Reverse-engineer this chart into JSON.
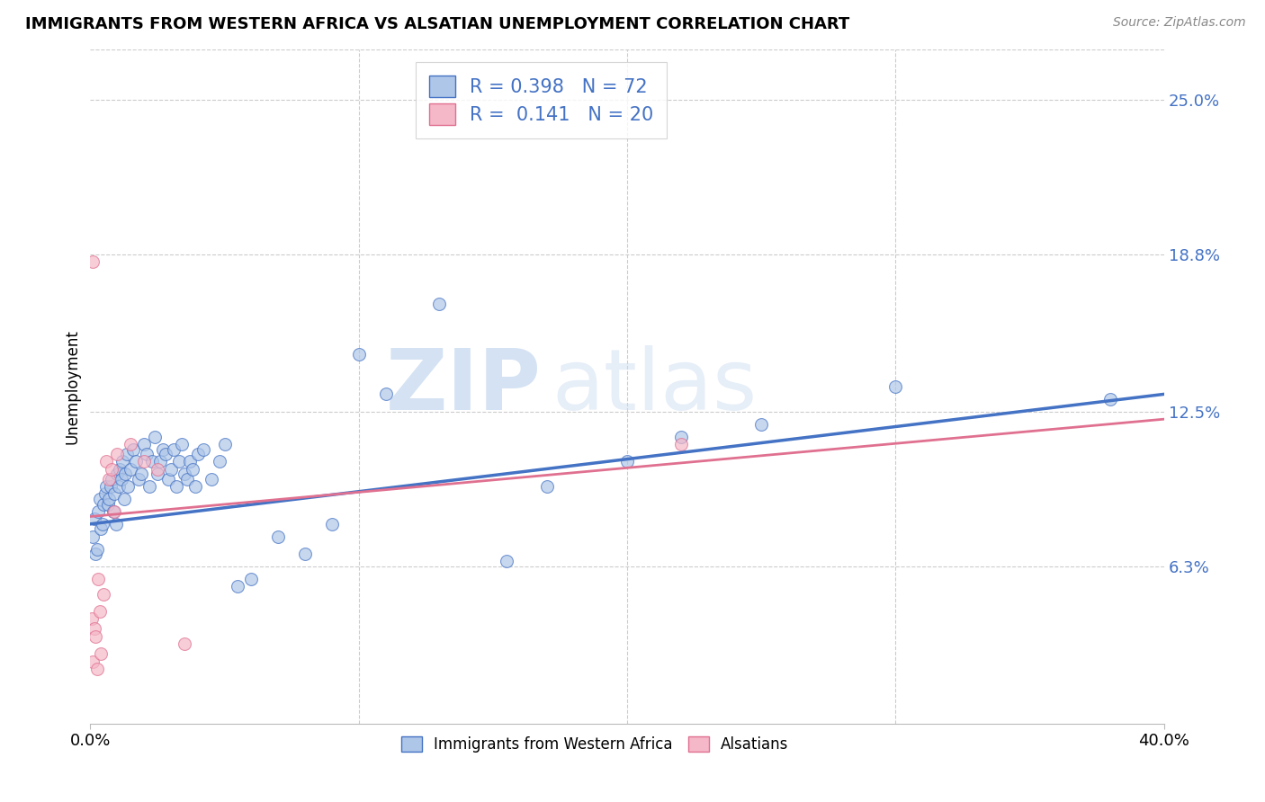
{
  "title": "IMMIGRANTS FROM WESTERN AFRICA VS ALSATIAN UNEMPLOYMENT CORRELATION CHART",
  "source": "Source: ZipAtlas.com",
  "ylabel": "Unemployment",
  "ytick_values": [
    6.3,
    12.5,
    18.8,
    25.0
  ],
  "xmin": 0.0,
  "xmax": 40.0,
  "ymin": 0.0,
  "ymax": 27.0,
  "r_blue": 0.398,
  "n_blue": 72,
  "r_pink": 0.141,
  "n_pink": 20,
  "blue_color": "#aec6e8",
  "pink_color": "#f5b8c8",
  "line_blue": "#4472C4",
  "line_pink": "#E07090",
  "watermark_zip": "ZIP",
  "watermark_atlas": "atlas",
  "legend_label_blue": "Immigrants from Western Africa",
  "legend_label_pink": "Alsatians",
  "blue_line_start_y": 8.0,
  "blue_line_end_y": 13.2,
  "pink_line_start_y": 8.3,
  "pink_line_end_y": 12.2,
  "blue_scatter_x": [
    0.1,
    0.15,
    0.2,
    0.25,
    0.3,
    0.35,
    0.4,
    0.45,
    0.5,
    0.55,
    0.6,
    0.65,
    0.7,
    0.75,
    0.8,
    0.85,
    0.9,
    0.95,
    1.0,
    1.05,
    1.1,
    1.15,
    1.2,
    1.25,
    1.3,
    1.35,
    1.4,
    1.5,
    1.6,
    1.7,
    1.8,
    1.9,
    2.0,
    2.1,
    2.2,
    2.3,
    2.4,
    2.5,
    2.6,
    2.7,
    2.8,
    2.9,
    3.0,
    3.1,
    3.2,
    3.3,
    3.4,
    3.5,
    3.6,
    3.7,
    3.8,
    3.9,
    4.0,
    4.2,
    4.5,
    4.8,
    5.0,
    5.5,
    6.0,
    7.0,
    8.0,
    9.0,
    10.0,
    11.0,
    13.0,
    15.5,
    17.0,
    20.0,
    22.0,
    25.0,
    30.0,
    38.0
  ],
  "blue_scatter_y": [
    7.5,
    8.2,
    6.8,
    7.0,
    8.5,
    9.0,
    7.8,
    8.0,
    8.8,
    9.2,
    9.5,
    8.8,
    9.0,
    9.5,
    9.8,
    8.5,
    9.2,
    8.0,
    10.0,
    9.5,
    10.2,
    9.8,
    10.5,
    9.0,
    10.0,
    10.8,
    9.5,
    10.2,
    11.0,
    10.5,
    9.8,
    10.0,
    11.2,
    10.8,
    9.5,
    10.5,
    11.5,
    10.0,
    10.5,
    11.0,
    10.8,
    9.8,
    10.2,
    11.0,
    9.5,
    10.5,
    11.2,
    10.0,
    9.8,
    10.5,
    10.2,
    9.5,
    10.8,
    11.0,
    9.8,
    10.5,
    11.2,
    5.5,
    5.8,
    7.5,
    6.8,
    8.0,
    14.8,
    13.2,
    16.8,
    6.5,
    9.5,
    10.5,
    11.5,
    12.0,
    13.5,
    13.0
  ],
  "pink_scatter_x": [
    0.05,
    0.1,
    0.15,
    0.2,
    0.25,
    0.3,
    0.35,
    0.4,
    0.5,
    0.6,
    0.7,
    0.8,
    0.9,
    1.0,
    1.5,
    2.0,
    2.5,
    3.5,
    22.0,
    0.08
  ],
  "pink_scatter_y": [
    4.2,
    2.5,
    3.8,
    3.5,
    2.2,
    5.8,
    4.5,
    2.8,
    5.2,
    10.5,
    9.8,
    10.2,
    8.5,
    10.8,
    11.2,
    10.5,
    10.2,
    3.2,
    11.2,
    18.5
  ]
}
